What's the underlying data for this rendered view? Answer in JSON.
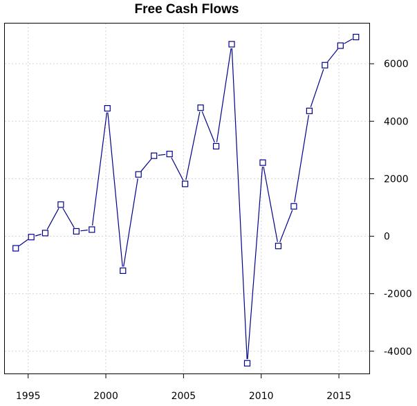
{
  "chart_data": {
    "type": "line",
    "title": "Free Cash Flows",
    "xlabel": "",
    "ylabel": "",
    "grid": true,
    "y_axis_side": "right",
    "marker": "open-square",
    "series_color": "#00008b",
    "xlim": [
      1993.5,
      2017
    ],
    "ylim": [
      -4800,
      7400
    ],
    "x_ticks": [
      1995,
      2000,
      2005,
      2010,
      2015
    ],
    "y_ticks": [
      -4000,
      -2000,
      0,
      2000,
      4000,
      6000
    ],
    "x_tick_labels": [
      "1995",
      "2000",
      "2005",
      "2010",
      "2015"
    ],
    "y_tick_labels": [
      "-4000",
      "-2000",
      "0",
      "2000",
      "4000",
      "6000"
    ],
    "series": [
      {
        "x": [
          1994.2,
          1995.2,
          1996.1,
          1997.1,
          1998.1,
          1999.1,
          2000.1,
          2001.1,
          2002.1,
          2003.1,
          2004.1,
          2005.1,
          2006.1,
          2007.1,
          2008.1,
          2009.1,
          2010.1,
          2011.1,
          2012.1,
          2013.1,
          2014.1,
          2015.1,
          2016.1
        ],
        "values": [
          -420,
          -30,
          110,
          1100,
          170,
          230,
          4450,
          -1200,
          2150,
          2800,
          2860,
          1820,
          4470,
          3130,
          6680,
          -4420,
          2560,
          -340,
          1040,
          4360,
          5950,
          6630,
          6930
        ]
      }
    ]
  }
}
